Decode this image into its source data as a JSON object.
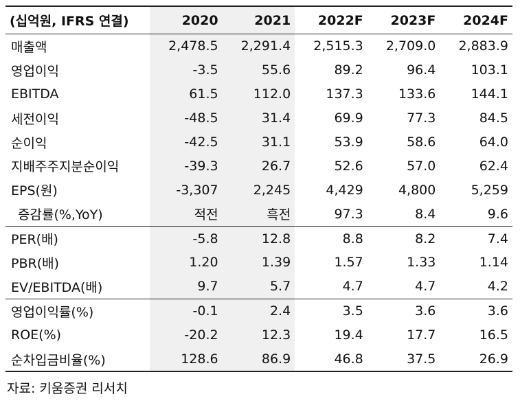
{
  "header": {
    "unit_label": "(십억원, IFRS 연결)",
    "years": [
      "2020",
      "2021",
      "2022F",
      "2023F",
      "2024F"
    ]
  },
  "rows": [
    {
      "label": "매출액",
      "values": [
        "2,478.5",
        "2,291.4",
        "2,515.3",
        "2,709.0",
        "2,883.9"
      ]
    },
    {
      "label": "영업이익",
      "values": [
        "-3.5",
        "55.6",
        "89.2",
        "96.4",
        "103.1"
      ]
    },
    {
      "label": "EBITDA",
      "values": [
        "61.5",
        "112.0",
        "137.3",
        "133.6",
        "144.1"
      ]
    },
    {
      "label": "세전이익",
      "values": [
        "-48.5",
        "31.4",
        "69.9",
        "77.3",
        "84.5"
      ]
    },
    {
      "label": "순이익",
      "values": [
        "-42.5",
        "31.1",
        "53.9",
        "58.6",
        "64.0"
      ]
    },
    {
      "label": "지배주주지분순이익",
      "values": [
        "-39.3",
        "26.7",
        "52.6",
        "57.0",
        "62.4"
      ]
    },
    {
      "label": "EPS(원)",
      "values": [
        "-3,307",
        "2,245",
        "4,429",
        "4,800",
        "5,259"
      ]
    },
    {
      "label": "증감률(%,YoY)",
      "values": [
        "적전",
        "흑전",
        "97.3",
        "8.4",
        "9.6"
      ]
    },
    {
      "label": "PER(배)",
      "values": [
        "-5.8",
        "12.8",
        "8.8",
        "8.2",
        "7.4"
      ]
    },
    {
      "label": "PBR(배)",
      "values": [
        "1.20",
        "1.39",
        "1.57",
        "1.33",
        "1.14"
      ]
    },
    {
      "label": "EV/EBITDA(배)",
      "values": [
        "9.7",
        "5.7",
        "4.7",
        "4.7",
        "4.2"
      ]
    },
    {
      "label": "영업이익률(%)",
      "values": [
        "-0.1",
        "2.4",
        "3.5",
        "3.6",
        "3.6"
      ]
    },
    {
      "label": "ROE(%)",
      "values": [
        "-20.2",
        "12.3",
        "19.4",
        "17.7",
        "16.5"
      ]
    },
    {
      "label": "순차입금비율(%)",
      "values": [
        "128.6",
        "86.9",
        "46.8",
        "37.5",
        "26.9"
      ]
    }
  ],
  "source": "자료: 키움증권 리서치",
  "colors": {
    "shade": "#f0f0f0",
    "rule": "#222222"
  }
}
